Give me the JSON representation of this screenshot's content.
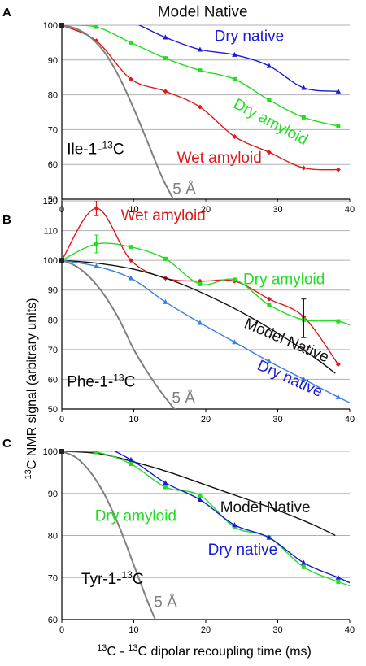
{
  "colors": {
    "model_native": "#111111",
    "dry_native": "#1a1adc",
    "dry_native_light": "#3a7ee6",
    "dry_amyloid": "#22dd22",
    "wet_amyloid": "#dd1a1a",
    "five_angstrom": "#808080",
    "grid": "#b0b0b0"
  },
  "axes": {
    "ylabel_sup": "13",
    "ylabel_text": "C NMR signal (arbitrary units)",
    "xlabel_sup1": "13",
    "xlabel_mid": "C - ",
    "xlabel_sup2": "13",
    "xlabel_end": "C dipolar recoupling time (ms)"
  },
  "chart_data": [
    {
      "type": "line",
      "panel": "A",
      "nucleus_label_pre": "Ile-1-",
      "nucleus_sup": "13",
      "nucleus_label_post": "C",
      "xlim": [
        0,
        40
      ],
      "ylim": [
        50,
        100
      ],
      "xticks": [
        0,
        10,
        20,
        30,
        40
      ],
      "yticks": [
        50,
        60,
        70,
        80,
        90,
        100
      ],
      "grid": true,
      "series": [
        {
          "name": "Model Native",
          "key": "model_native",
          "marker": "none",
          "x": [
            0,
            5,
            10,
            15,
            20,
            25,
            30,
            35,
            39
          ],
          "y": [
            100,
            100.3,
            100.7,
            101.2,
            101.6,
            102,
            102.3,
            102.5,
            102.7
          ]
        },
        {
          "name": "Dry native",
          "key": "dry_native",
          "marker": "triangle",
          "x": [
            0,
            4.8,
            9.6,
            14.4,
            19.2,
            24,
            28.8,
            33.6,
            38.4
          ],
          "y": [
            100,
            103.5,
            101,
            96.5,
            93,
            91.5,
            88.3,
            82,
            81
          ]
        },
        {
          "name": "Dry amyloid",
          "key": "dry_amyloid",
          "marker": "square",
          "x": [
            0,
            4.8,
            9.6,
            14.4,
            19.2,
            24,
            28.8,
            33.6,
            38.4
          ],
          "y": [
            100,
            99.5,
            95,
            90.5,
            87,
            84.5,
            78.5,
            73.5,
            71
          ]
        },
        {
          "name": "Wet amyloid",
          "key": "wet_amyloid",
          "marker": "diamond",
          "x": [
            0,
            4.8,
            9.6,
            14.4,
            19.2,
            24,
            28.8,
            33.6,
            38.4
          ],
          "y": [
            100,
            95.5,
            84.5,
            81,
            76.5,
            68,
            63.5,
            59,
            58.5
          ]
        },
        {
          "name": "5 Å",
          "key": "five_angstrom",
          "marker": "none",
          "x": [
            0,
            2,
            4,
            6,
            8,
            10,
            12,
            14,
            15.5
          ],
          "y": [
            100,
            99,
            96.5,
            92,
            85,
            76,
            66,
            56,
            50
          ]
        }
      ],
      "annotations": [
        {
          "text": "Model Native",
          "key": "model_native",
          "x": 13.3,
          "y": 102.5
        },
        {
          "text": "Dry native",
          "key": "dry_native",
          "x": 21.2,
          "y": 95.5
        },
        {
          "text": "Dry amyloid",
          "key": "dry_amyloid",
          "x": 23.7,
          "y": 76.5,
          "rotate": 28
        },
        {
          "text": "Wet amyloid",
          "key": "wet_amyloid",
          "x": 16.0,
          "y": 60.5
        },
        {
          "text": "5 Å",
          "key": "five_angstrom",
          "x": 15.4,
          "y": 51.5
        }
      ]
    },
    {
      "type": "line",
      "panel": "B",
      "nucleus_label_pre": "Phe-1-",
      "nucleus_sup": "13",
      "nucleus_label_post": "C",
      "xlim": [
        0,
        40
      ],
      "ylim": [
        50,
        120
      ],
      "xticks": [
        0,
        10,
        20,
        30,
        40
      ],
      "yticks": [
        50,
        60,
        70,
        80,
        90,
        100,
        110,
        120
      ],
      "grid": true,
      "series": [
        {
          "name": "Wet amyloid",
          "key": "wet_amyloid",
          "marker": "diamond",
          "x": [
            0,
            4.8,
            9.6,
            14.4,
            19.2,
            24,
            28.8,
            33.6,
            38.4
          ],
          "y": [
            100,
            117.5,
            100,
            94,
            93,
            93,
            87,
            81,
            65
          ]
        },
        {
          "name": "Dry amyloid",
          "key": "dry_amyloid",
          "marker": "square",
          "x": [
            0,
            4.8,
            9.6,
            14.4,
            19.2,
            24,
            28.8,
            33.6,
            38.4,
            41
          ],
          "y": [
            100,
            105.5,
            104.5,
            100.5,
            92,
            93.5,
            85,
            80,
            79.5,
            77
          ]
        },
        {
          "name": "Model Native",
          "key": "model_native",
          "marker": "none",
          "x": [
            0,
            5,
            10,
            15,
            20,
            25,
            30,
            35,
            38
          ],
          "y": [
            100,
            99,
            97,
            93.5,
            88.5,
            82.5,
            75.5,
            67.5,
            62
          ]
        },
        {
          "name": "Dry native",
          "key": "dry_native_light",
          "marker": "triangle",
          "x": [
            0,
            4.8,
            9.6,
            14.4,
            19.2,
            24,
            28.8,
            33.6,
            38.4,
            41
          ],
          "y": [
            100,
            98,
            94,
            86,
            79,
            72.5,
            66,
            60,
            54,
            51
          ]
        },
        {
          "name": "5 Å",
          "key": "five_angstrom",
          "marker": "none",
          "x": [
            0,
            2,
            4,
            6,
            8,
            10,
            12,
            14,
            16
          ],
          "y": [
            100,
            98,
            94,
            88,
            80,
            70,
            62,
            55,
            49
          ]
        }
      ],
      "error_bars": [
        {
          "key": "wet_amyloid",
          "x": 4.8,
          "y_low": 115,
          "y_high": 120
        },
        {
          "key": "dry_amyloid",
          "x": 4.8,
          "y_low": 102.5,
          "y_high": 108.5
        },
        {
          "key": "model_native",
          "x": 33.6,
          "y_low": 74,
          "y_high": 87
        }
      ],
      "annotations": [
        {
          "text": "Wet amyloid",
          "key": "wet_amyloid",
          "x": 8.2,
          "y": 113.5
        },
        {
          "text": "Dry amyloid",
          "key": "dry_amyloid",
          "x": 25.2,
          "y": 92
        },
        {
          "text": "Model Native",
          "key": "model_native",
          "x": 25.2,
          "y": 77.5,
          "rotate": 23
        },
        {
          "text": "Dry native",
          "key": "dry_native",
          "x": 27.0,
          "y": 63.5,
          "rotate": 24
        },
        {
          "text": "5 Å",
          "key": "five_angstrom",
          "x": 15.3,
          "y": 52
        }
      ]
    },
    {
      "type": "line",
      "panel": "C",
      "nucleus_label_pre": "Tyr-1-",
      "nucleus_sup": "13",
      "nucleus_label_post": "C",
      "xlim": [
        0,
        40
      ],
      "ylim": [
        60,
        100
      ],
      "xticks": [
        0,
        10,
        20,
        30,
        40
      ],
      "yticks": [
        60,
        70,
        80,
        90,
        100
      ],
      "grid": true,
      "series": [
        {
          "name": "Model Native",
          "key": "model_native",
          "marker": "none",
          "x": [
            0,
            5,
            10,
            15,
            20,
            25,
            30,
            35,
            38
          ],
          "y": [
            100,
            99.5,
            97.5,
            95,
            92,
            89,
            86,
            82.5,
            80
          ]
        },
        {
          "name": "Dry amyloid",
          "key": "dry_amyloid",
          "marker": "square",
          "x": [
            0,
            4.8,
            9.6,
            14.4,
            19.2,
            24,
            28.8,
            33.6,
            38.4,
            41
          ],
          "y": [
            100,
            99.8,
            97,
            91.5,
            89.5,
            82,
            79.5,
            72.5,
            69,
            67.5
          ]
        },
        {
          "name": "Dry native",
          "key": "dry_native",
          "marker": "triangle",
          "x": [
            0,
            4.8,
            9.6,
            14.4,
            19.2,
            24,
            28.8,
            33.6,
            38.4,
            41
          ],
          "y": [
            100,
            101.5,
            98,
            92.5,
            88.5,
            82.5,
            79.5,
            73.5,
            70,
            68
          ]
        },
        {
          "name": "5 Å",
          "key": "five_angstrom",
          "marker": "none",
          "x": [
            0,
            2,
            4,
            6,
            8,
            10,
            12,
            13.5
          ],
          "y": [
            100,
            98.5,
            95,
            89.5,
            82,
            73,
            64,
            58
          ]
        }
      ],
      "annotations": [
        {
          "text": "Model Native",
          "key": "model_native",
          "x": 22.0,
          "y": 85.5
        },
        {
          "text": "Dry amyloid",
          "key": "dry_amyloid",
          "x": 4.6,
          "y": 83.5
        },
        {
          "text": "Dry native",
          "key": "dry_native",
          "x": 20.3,
          "y": 75.5
        },
        {
          "text": "5 Å",
          "key": "five_angstrom",
          "x": 12.8,
          "y": 63
        }
      ]
    }
  ]
}
